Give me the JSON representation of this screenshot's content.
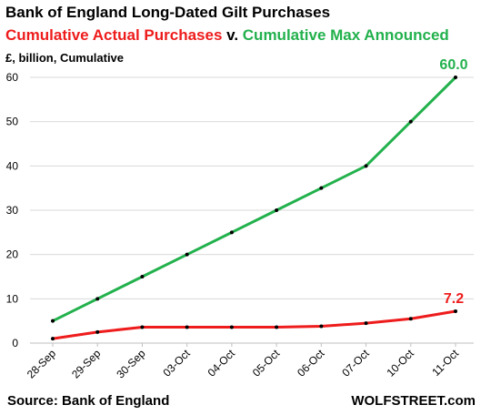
{
  "title": "Bank of England Long-Dated Gilt Purchases",
  "subtitle": {
    "part1": "Cumulative Actual Purchases",
    "sep": " v. ",
    "part2": "Cumulative Max Announced"
  },
  "source": "Source: Bank of England",
  "brand": "WOLFSTREET.com",
  "colors": {
    "actual": "#ee1c1c",
    "max": "#22b14c",
    "grid": "#d9d9d9",
    "marker": "#000000"
  },
  "chart_data": {
    "type": "line",
    "title": "Bank of England Long-Dated Gilt Purchases",
    "ylabel": "£, billion, Cumulative",
    "xlabel": "",
    "categories": [
      "28-Sep",
      "29-Sep",
      "30-Sep",
      "03-Oct",
      "04-Oct",
      "05-Oct",
      "06-Oct",
      "07-Oct",
      "10-Oct",
      "11-Oct"
    ],
    "ylim": [
      0,
      60
    ],
    "yticks": [
      0,
      10,
      20,
      30,
      40,
      50,
      60
    ],
    "grid": "horizontal",
    "series": [
      {
        "name": "Cumulative Max Announced",
        "values": [
          5,
          10,
          15,
          20,
          25,
          30,
          35,
          40,
          50,
          60
        ],
        "end_label": "60.0"
      },
      {
        "name": "Cumulative Actual Purchases",
        "values": [
          1.0,
          2.5,
          3.6,
          3.6,
          3.6,
          3.6,
          3.8,
          4.5,
          5.5,
          7.2
        ],
        "end_label": "7.2"
      }
    ]
  }
}
